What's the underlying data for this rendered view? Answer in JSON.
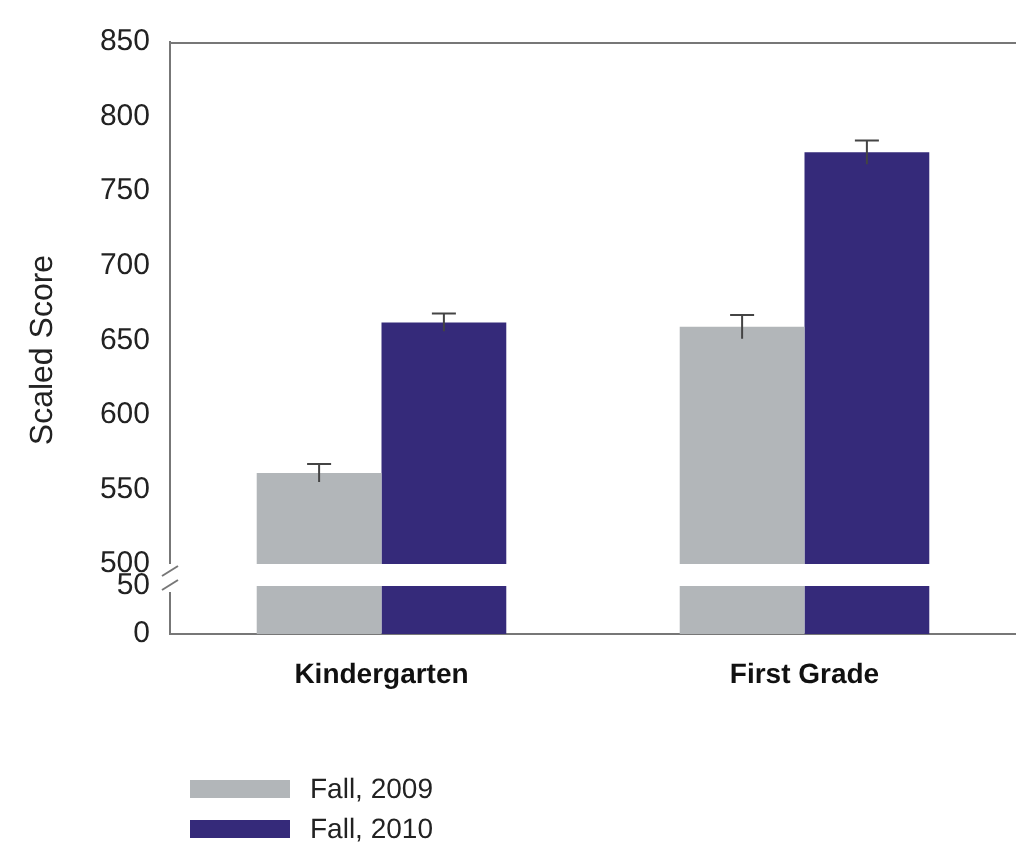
{
  "chart_data": [
    {
      "type": "bar",
      "ylabel": "Scaled Score",
      "categories": [
        null,
        null
      ],
      "series": [
        {
          "color": "#b2b6b9",
          "values": [
            561,
            659
          ],
          "errors": [
            6,
            8
          ]
        },
        {
          "color": "#352a7a",
          "values": [
            662,
            776
          ],
          "errors": [
            6,
            8
          ]
        }
      ],
      "ylim": [
        500,
        850
      ],
      "yticks": [
        500,
        550,
        600,
        650,
        700,
        750,
        800,
        850
      ],
      "tick_labels": "y",
      "grid": false
    },
    {
      "type": "bar",
      "categories": [
        "Kindergarten",
        "First Grade"
      ],
      "series": [
        {
          "name": "Fall, 2009",
          "color": "#b2b6b9",
          "values": [
            50,
            50
          ]
        },
        {
          "name": "Fall, 2010",
          "color": "#352a7a",
          "values": [
            50,
            50
          ]
        }
      ],
      "ylim": [
        0,
        50
      ],
      "yticks": [
        0,
        50
      ],
      "legend": "bottom left",
      "grid": false
    }
  ]
}
